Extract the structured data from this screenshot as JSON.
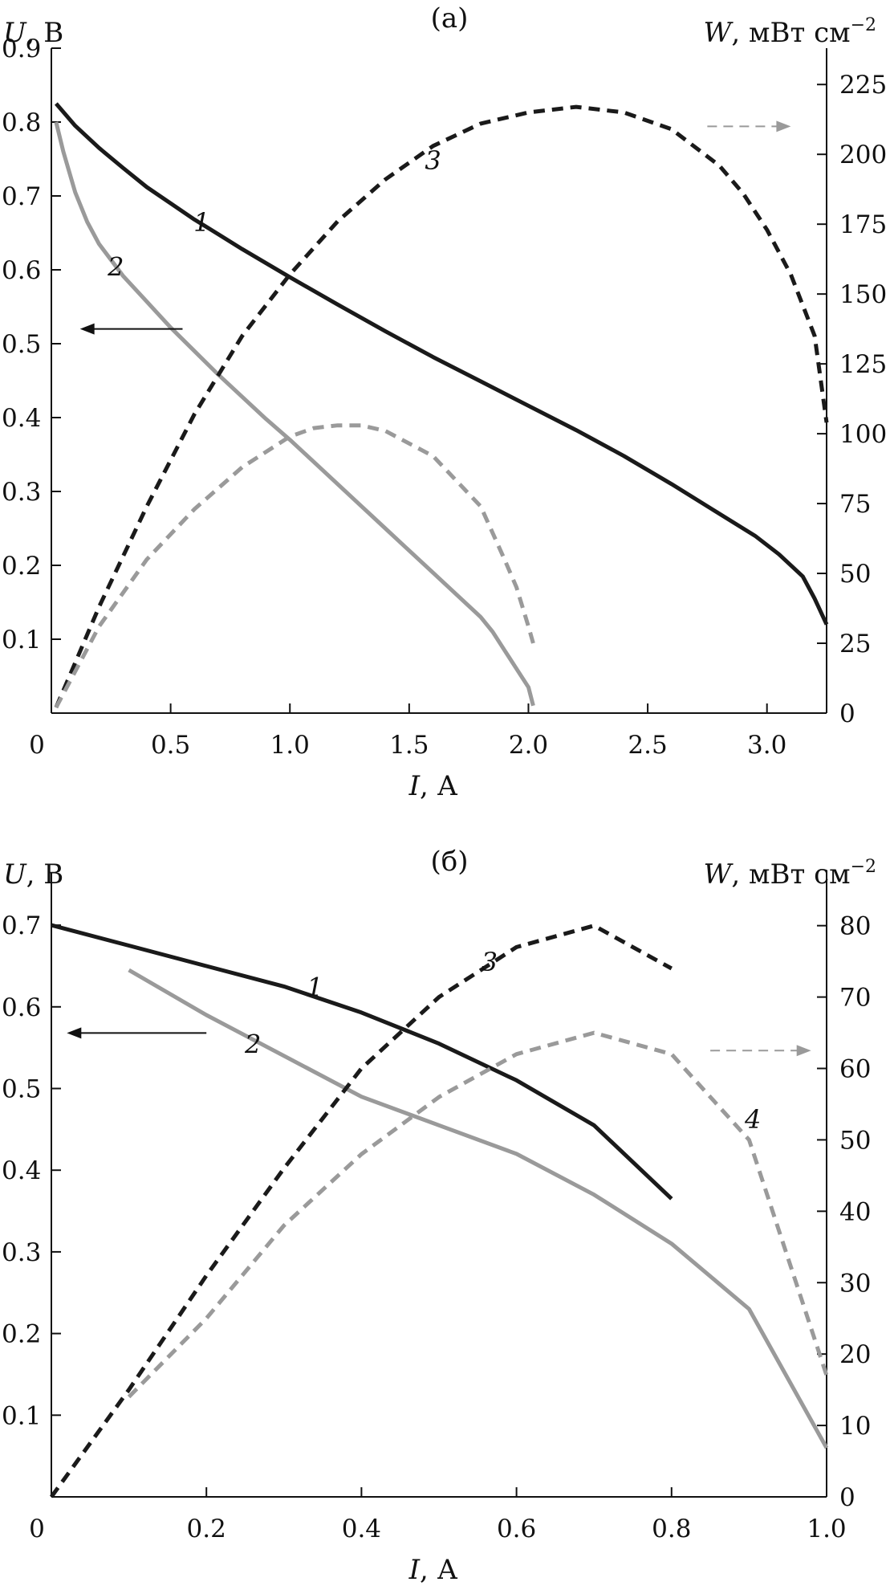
{
  "colors": {
    "dark": "#1a1a1a",
    "gray": "#9a9a9a",
    "arrow_dark": "#111111",
    "arrow_gray": "#9a9a9a"
  },
  "chart_data": [
    {
      "type": "line",
      "title": "(а)",
      "xlabel": {
        "var": "I",
        "unit": ", А"
      },
      "ylabel_left": {
        "var": "U",
        "unit": ", В"
      },
      "ylabel_right": {
        "var": "W",
        "unit": ", мВт см",
        "exp": "−2"
      },
      "xlim": [
        0,
        3.25
      ],
      "ylim_left": [
        0,
        0.9
      ],
      "ylim_right": [
        0,
        238
      ],
      "x_ticks": [
        0.5,
        1.0,
        1.5,
        2.0,
        2.5,
        3.0
      ],
      "x_tick_labels": [
        "0.5",
        "1.0",
        "1.5",
        "2.0",
        "2.5",
        "3.0"
      ],
      "origin_label": "0",
      "y_left_ticks": [
        0.1,
        0.2,
        0.3,
        0.4,
        0.5,
        0.6,
        0.7,
        0.8,
        0.9
      ],
      "y_left_tick_labels": [
        "0.1",
        "0.2",
        "0.3",
        "0.4",
        "0.5",
        "0.6",
        "0.7",
        "0.8",
        "0.9"
      ],
      "y_right_ticks": [
        0,
        25,
        50,
        75,
        100,
        125,
        150,
        175,
        200,
        225
      ],
      "y_right_tick_labels": [
        "0",
        "25",
        "50",
        "75",
        "100",
        "125",
        "150",
        "175",
        "200",
        "225"
      ],
      "series": [
        {
          "label": "1",
          "axis": "left",
          "color": "dark",
          "dash": false,
          "x": [
            0.02,
            0.1,
            0.2,
            0.3,
            0.4,
            0.5,
            0.6,
            0.7,
            0.8,
            0.9,
            1.0,
            1.2,
            1.4,
            1.6,
            1.8,
            2.0,
            2.2,
            2.4,
            2.6,
            2.8,
            2.95,
            3.05,
            3.15,
            3.2,
            3.25
          ],
          "y": [
            0.825,
            0.795,
            0.765,
            0.738,
            0.712,
            0.69,
            0.668,
            0.648,
            0.628,
            0.609,
            0.59,
            0.553,
            0.517,
            0.482,
            0.449,
            0.416,
            0.383,
            0.348,
            0.31,
            0.27,
            0.24,
            0.215,
            0.185,
            0.155,
            0.12
          ]
        },
        {
          "label": "2",
          "axis": "left",
          "color": "gray",
          "dash": false,
          "x": [
            0.02,
            0.05,
            0.1,
            0.15,
            0.2,
            0.3,
            0.4,
            0.5,
            0.6,
            0.7,
            0.8,
            0.9,
            1.0,
            1.1,
            1.2,
            1.3,
            1.4,
            1.5,
            1.6,
            1.7,
            1.8,
            1.85,
            1.9,
            1.95,
            2.0,
            2.02
          ],
          "y": [
            0.8,
            0.76,
            0.705,
            0.665,
            0.635,
            0.592,
            0.557,
            0.522,
            0.49,
            0.458,
            0.428,
            0.398,
            0.37,
            0.34,
            0.31,
            0.28,
            0.25,
            0.22,
            0.19,
            0.16,
            0.13,
            0.11,
            0.085,
            0.06,
            0.035,
            0.01
          ]
        },
        {
          "label": "3",
          "axis": "right",
          "color": "dark",
          "dash": true,
          "x": [
            0.02,
            0.2,
            0.4,
            0.6,
            0.8,
            1.0,
            1.2,
            1.4,
            1.6,
            1.8,
            2.0,
            2.2,
            2.4,
            2.6,
            2.8,
            2.9,
            3.0,
            3.1,
            3.2,
            3.25
          ],
          "y": [
            2,
            38,
            74,
            107,
            135,
            157,
            176,
            191,
            203,
            211,
            215,
            217,
            215,
            209,
            196,
            186,
            173,
            157,
            135,
            104
          ]
        },
        {
          "label": "",
          "axis": "right",
          "color": "gray",
          "dash": true,
          "x": [
            0.02,
            0.2,
            0.4,
            0.6,
            0.8,
            1.0,
            1.1,
            1.2,
            1.3,
            1.4,
            1.6,
            1.8,
            1.9,
            1.95,
            2.0,
            2.02
          ],
          "y": [
            2,
            31,
            55,
            73,
            88,
            99,
            102,
            103,
            103,
            101,
            92,
            74,
            55,
            45,
            31,
            25
          ]
        }
      ],
      "annotations": {
        "left_arrow": {
          "x": [
            0.55,
            0.12
          ],
          "y": 0.52,
          "axis": "left"
        },
        "right_arrow": {
          "x": [
            2.75,
            3.1
          ],
          "y": 210,
          "axis": "right"
        },
        "labels": [
          {
            "text": "1",
            "x": 0.63,
            "y": 0.665,
            "axis": "left"
          },
          {
            "text": "2",
            "x": 0.27,
            "y": 0.605,
            "axis": "left"
          },
          {
            "text": "3",
            "x": 1.6,
            "y": 198,
            "axis": "right"
          }
        ]
      }
    },
    {
      "type": "line",
      "title": "(б)",
      "xlabel": {
        "var": "I",
        "unit": ", А"
      },
      "ylabel_left": {
        "var": "U",
        "unit": ", В"
      },
      "ylabel_right": {
        "var": "W",
        "unit": ", мВт см",
        "exp": "−2"
      },
      "xlim": [
        0,
        1.0
      ],
      "ylim_left": [
        0,
        0.765
      ],
      "ylim_right": [
        0,
        87.5
      ],
      "x_ticks": [
        0.2,
        0.4,
        0.6,
        0.8,
        1.0
      ],
      "x_tick_labels": [
        "0.2",
        "0.4",
        "0.6",
        "0.8",
        "1.0"
      ],
      "origin_label": "0",
      "y_left_ticks": [
        0.1,
        0.2,
        0.3,
        0.4,
        0.5,
        0.6,
        0.7
      ],
      "y_left_tick_labels": [
        "0.1",
        "0.2",
        "0.3",
        "0.4",
        "0.5",
        "0.6",
        "0.7"
      ],
      "y_right_ticks": [
        0,
        10,
        20,
        30,
        40,
        50,
        60,
        70,
        80
      ],
      "y_right_tick_labels": [
        "0",
        "10",
        "20",
        "30",
        "40",
        "50",
        "60",
        "70",
        "80"
      ],
      "series": [
        {
          "label": "1",
          "axis": "left",
          "color": "dark",
          "dash": false,
          "x": [
            0.0,
            0.1,
            0.2,
            0.3,
            0.4,
            0.5,
            0.6,
            0.7,
            0.8
          ],
          "y": [
            0.7,
            0.675,
            0.65,
            0.625,
            0.593,
            0.555,
            0.51,
            0.455,
            0.365
          ]
        },
        {
          "label": "2",
          "axis": "left",
          "color": "gray",
          "dash": false,
          "x": [
            0.1,
            0.2,
            0.3,
            0.4,
            0.5,
            0.6,
            0.7,
            0.8,
            0.9,
            1.0
          ],
          "y": [
            0.645,
            0.59,
            0.54,
            0.49,
            0.455,
            0.42,
            0.37,
            0.31,
            0.23,
            0.06
          ]
        },
        {
          "label": "3",
          "axis": "right",
          "color": "dark",
          "dash": true,
          "x": [
            0.0,
            0.1,
            0.2,
            0.3,
            0.4,
            0.5,
            0.6,
            0.7,
            0.8
          ],
          "y": [
            0,
            15,
            31,
            46,
            60,
            70,
            77,
            80,
            74
          ]
        },
        {
          "label": "4",
          "axis": "right",
          "color": "gray",
          "dash": true,
          "x": [
            0.1,
            0.2,
            0.3,
            0.4,
            0.5,
            0.6,
            0.7,
            0.8,
            0.9,
            1.0
          ],
          "y": [
            14,
            25,
            38,
            48,
            56,
            62,
            65,
            62,
            50,
            17
          ]
        }
      ],
      "annotations": {
        "left_arrow": {
          "x": [
            0.2,
            0.02
          ],
          "y": 0.568,
          "axis": "left"
        },
        "right_arrow": {
          "x": [
            0.85,
            0.98
          ],
          "y": 62.5,
          "axis": "right"
        },
        "labels": [
          {
            "text": "1",
            "x": 0.34,
            "y": 0.625,
            "axis": "left"
          },
          {
            "text": "2",
            "x": 0.26,
            "y": 0.555,
            "axis": "left"
          },
          {
            "text": "3",
            "x": 0.565,
            "y": 75,
            "axis": "right"
          },
          {
            "text": "4",
            "x": 0.905,
            "y": 53,
            "axis": "right"
          }
        ]
      }
    }
  ]
}
